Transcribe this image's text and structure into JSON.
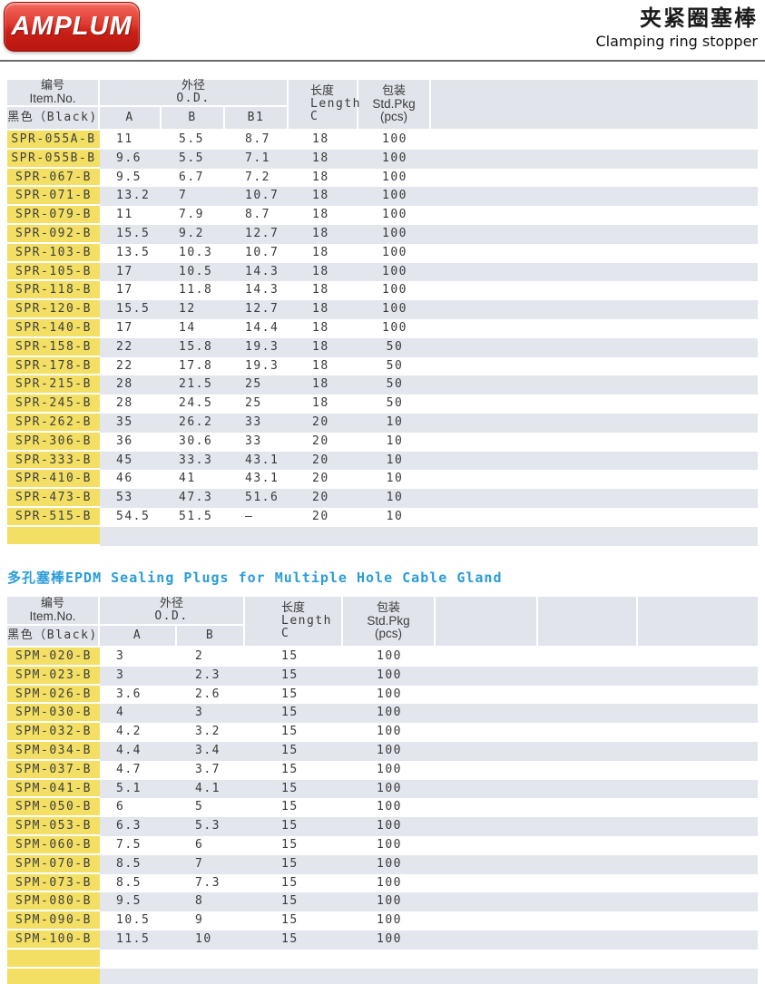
{
  "page": {
    "logo_text": "AMPLUM",
    "title_cn": "夹紧圈塞棒",
    "title_en": "Clamping ring stopper",
    "section2_title": "多孔塞棒EPDM Sealing Plugs for Multiple Hole Cable Gland"
  },
  "colors": {
    "item_yellow": "#f2df63",
    "header_gray": "#e2e4eb",
    "row_stripe": "#e3e6ed",
    "section_title_blue": "#2b9cd8",
    "logo_red": "#c92017"
  },
  "table1": {
    "header": {
      "item_cn": "编号",
      "item_en": "Item.No.",
      "item_black": "黑色（Black)",
      "od_cn": "外径",
      "od_en": "O.D.",
      "col_a": "A",
      "col_b": "B",
      "col_b1": "B1",
      "length_cn": "长度",
      "length_en": "Length",
      "length_c": "C",
      "pkg_cn": "包装",
      "pkg_en": "Std.Pkg",
      "pkg_unit": "(pcs)"
    },
    "empty_rows": 1,
    "rows": [
      {
        "item": "SPR-055A-B",
        "a": "11",
        "b": "5.5",
        "b1": "8.7",
        "c": "18",
        "pkg": "100"
      },
      {
        "item": "SPR-055B-B",
        "a": "9.6",
        "b": "5.5",
        "b1": "7.1",
        "c": "18",
        "pkg": "100"
      },
      {
        "item": "SPR-067-B",
        "a": "9.5",
        "b": "6.7",
        "b1": "7.2",
        "c": "18",
        "pkg": "100"
      },
      {
        "item": "SPR-071-B",
        "a": "13.2",
        "b": "7",
        "b1": "10.7",
        "c": "18",
        "pkg": "100"
      },
      {
        "item": "SPR-079-B",
        "a": "11",
        "b": "7.9",
        "b1": "8.7",
        "c": "18",
        "pkg": "100"
      },
      {
        "item": "SPR-092-B",
        "a": "15.5",
        "b": "9.2",
        "b1": "12.7",
        "c": "18",
        "pkg": "100"
      },
      {
        "item": "SPR-103-B",
        "a": "13.5",
        "b": "10.3",
        "b1": "10.7",
        "c": "18",
        "pkg": "100"
      },
      {
        "item": "SPR-105-B",
        "a": "17",
        "b": "10.5",
        "b1": "14.3",
        "c": "18",
        "pkg": "100"
      },
      {
        "item": "SPR-118-B",
        "a": "17",
        "b": "11.8",
        "b1": "14.3",
        "c": "18",
        "pkg": "100"
      },
      {
        "item": "SPR-120-B",
        "a": "15.5",
        "b": "12",
        "b1": "12.7",
        "c": "18",
        "pkg": "100"
      },
      {
        "item": "SPR-140-B",
        "a": "17",
        "b": "14",
        "b1": "14.4",
        "c": "18",
        "pkg": "100"
      },
      {
        "item": "SPR-158-B",
        "a": "22",
        "b": "15.8",
        "b1": "19.3",
        "c": "18",
        "pkg": "50"
      },
      {
        "item": "SPR-178-B",
        "a": "22",
        "b": "17.8",
        "b1": "19.3",
        "c": "18",
        "pkg": "50"
      },
      {
        "item": "SPR-215-B",
        "a": "28",
        "b": "21.5",
        "b1": "25",
        "c": "18",
        "pkg": "50"
      },
      {
        "item": "SPR-245-B",
        "a": "28",
        "b": "24.5",
        "b1": "25",
        "c": "18",
        "pkg": "50"
      },
      {
        "item": "SPR-262-B",
        "a": "35",
        "b": "26.2",
        "b1": "33",
        "c": "20",
        "pkg": "10"
      },
      {
        "item": "SPR-306-B",
        "a": "36",
        "b": "30.6",
        "b1": "33",
        "c": "20",
        "pkg": "10"
      },
      {
        "item": "SPR-333-B",
        "a": "45",
        "b": "33.3",
        "b1": "43.1",
        "c": "20",
        "pkg": "10"
      },
      {
        "item": "SPR-410-B",
        "a": "46",
        "b": "41",
        "b1": "43.1",
        "c": "20",
        "pkg": "10"
      },
      {
        "item": "SPR-473-B",
        "a": "53",
        "b": "47.3",
        "b1": "51.6",
        "c": "20",
        "pkg": "10"
      },
      {
        "item": "SPR-515-B",
        "a": "54.5",
        "b": "51.5",
        "b1": "–",
        "c": "20",
        "pkg": "10"
      }
    ]
  },
  "table2": {
    "header": {
      "item_cn": "编号",
      "item_en": "Item.No.",
      "item_black": "黑色（Black)",
      "od_cn": "外径",
      "od_en": "O.D.",
      "col_a": "A",
      "col_b": "B",
      "length_cn": "长度",
      "length_en": "Length",
      "length_c": "C",
      "pkg_cn": "包装",
      "pkg_en": "Std.Pkg",
      "pkg_unit": "(pcs)"
    },
    "empty_rows": 2,
    "rows": [
      {
        "item": "SPM-020-B",
        "a": "3",
        "b": "2",
        "c": "15",
        "pkg": "100"
      },
      {
        "item": "SPM-023-B",
        "a": "3",
        "b": "2.3",
        "c": "15",
        "pkg": "100"
      },
      {
        "item": "SPM-026-B",
        "a": "3.6",
        "b": "2.6",
        "c": "15",
        "pkg": "100"
      },
      {
        "item": "SPM-030-B",
        "a": "4",
        "b": "3",
        "c": "15",
        "pkg": "100"
      },
      {
        "item": "SPM-032-B",
        "a": "4.2",
        "b": "3.2",
        "c": "15",
        "pkg": "100"
      },
      {
        "item": "SPM-034-B",
        "a": "4.4",
        "b": "3.4",
        "c": "15",
        "pkg": "100"
      },
      {
        "item": "SPM-037-B",
        "a": "4.7",
        "b": "3.7",
        "c": "15",
        "pkg": "100"
      },
      {
        "item": "SPM-041-B",
        "a": "5.1",
        "b": "4.1",
        "c": "15",
        "pkg": "100"
      },
      {
        "item": "SPM-050-B",
        "a": "6",
        "b": "5",
        "c": "15",
        "pkg": "100"
      },
      {
        "item": "SPM-053-B",
        "a": "6.3",
        "b": "5.3",
        "c": "15",
        "pkg": "100"
      },
      {
        "item": "SPM-060-B",
        "a": "7.5",
        "b": "6",
        "c": "15",
        "pkg": "100"
      },
      {
        "item": "SPM-070-B",
        "a": "8.5",
        "b": "7",
        "c": "15",
        "pkg": "100"
      },
      {
        "item": "SPM-073-B",
        "a": "8.5",
        "b": "7.3",
        "c": "15",
        "pkg": "100"
      },
      {
        "item": "SPM-080-B",
        "a": "9.5",
        "b": "8",
        "c": "15",
        "pkg": "100"
      },
      {
        "item": "SPM-090-B",
        "a": "10.5",
        "b": "9",
        "c": "15",
        "pkg": "100"
      },
      {
        "item": "SPM-100-B",
        "a": "11.5",
        "b": "10",
        "c": "15",
        "pkg": "100"
      }
    ]
  }
}
